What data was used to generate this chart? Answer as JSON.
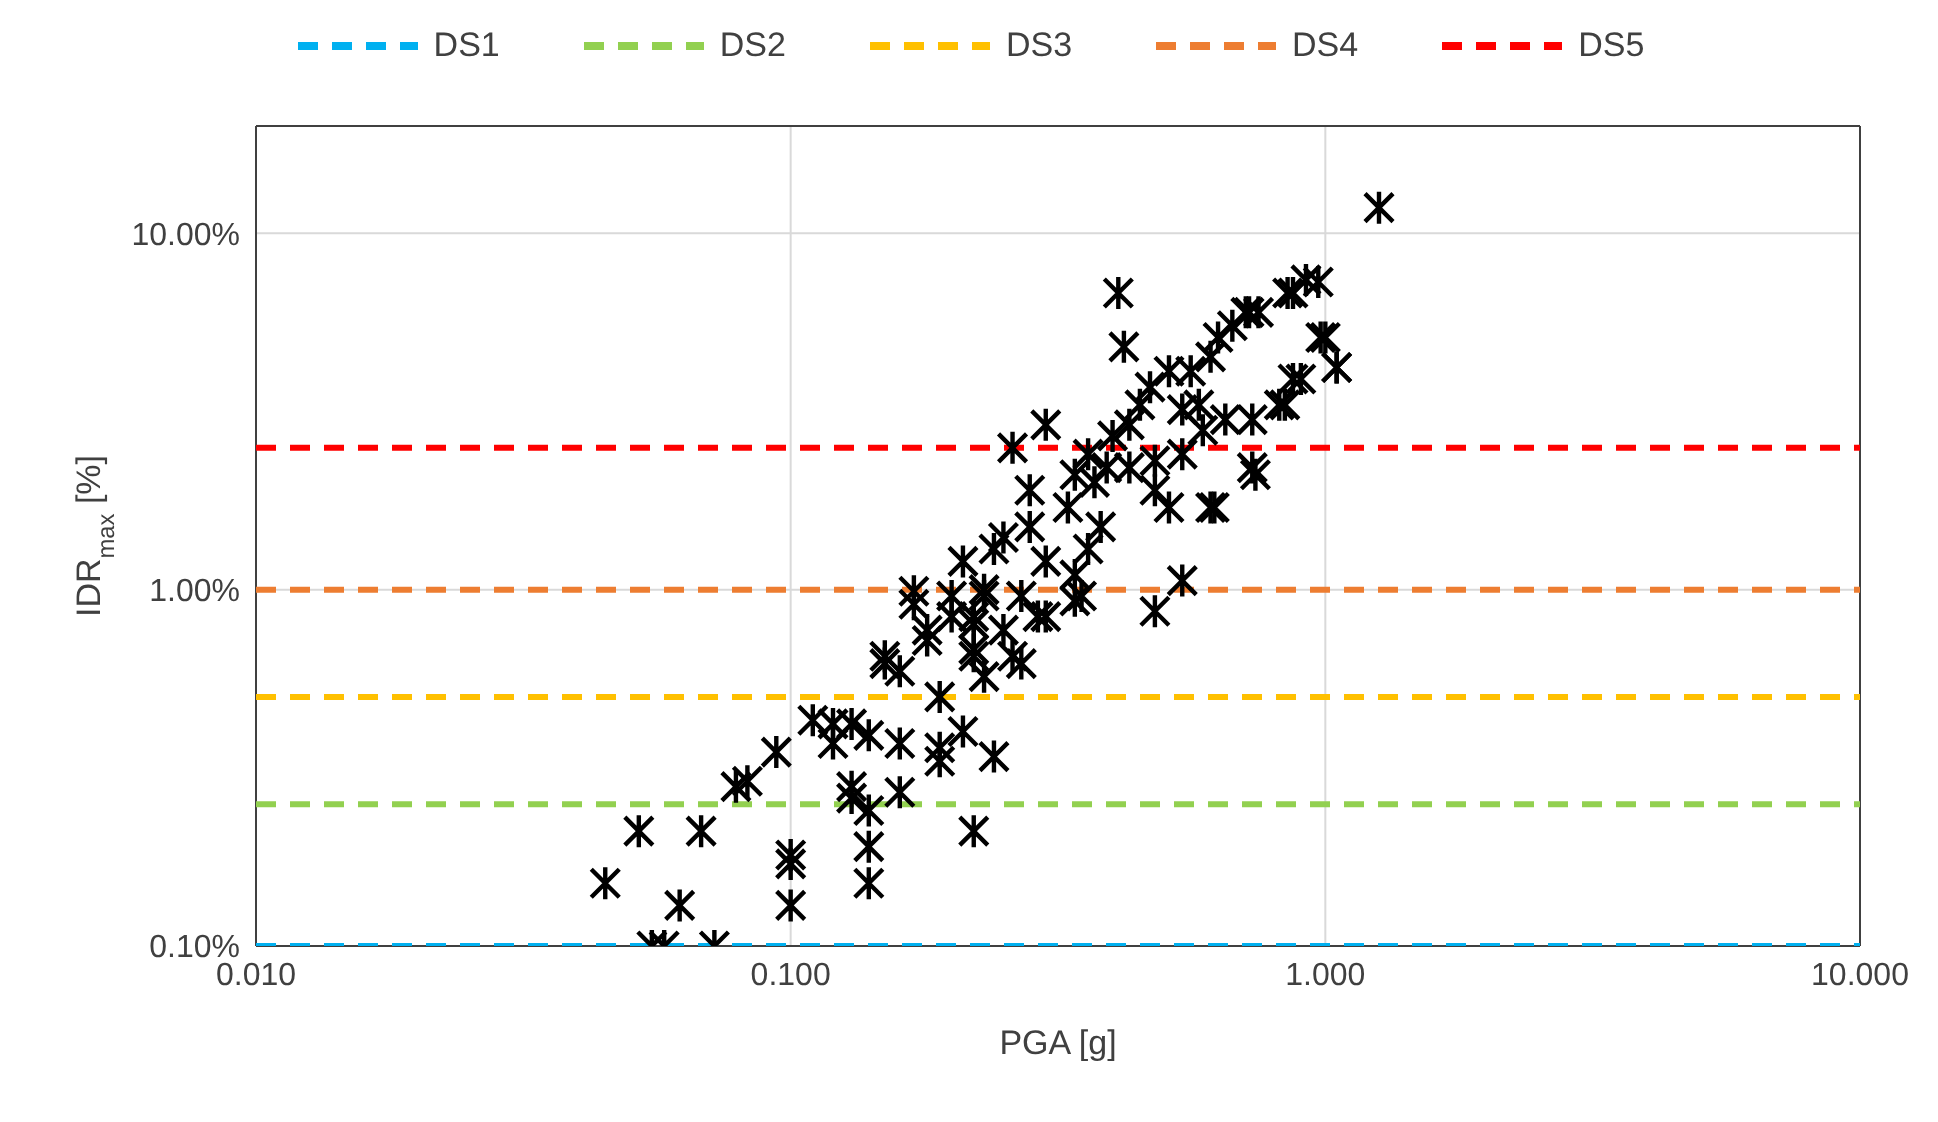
{
  "chart_data": {
    "type": "scatter",
    "xlabel": "PGA [g]",
    "ylabel": "IDR$_{max}$ [%]",
    "log": "xy",
    "grid": true,
    "legend": "top",
    "marker": "cross",
    "xlim": [
      0.01,
      10
    ],
    "ylim": [
      0.1,
      20
    ],
    "xticks": [
      {
        "value": 0.01,
        "label": "0.010"
      },
      {
        "value": 0.1,
        "label": "0.100"
      },
      {
        "value": 1,
        "label": "1.000"
      },
      {
        "value": 10,
        "label": "10.000"
      }
    ],
    "yticks": [
      {
        "value": 0.1,
        "label": "0.10%"
      },
      {
        "value": 1,
        "label": "1.00%"
      },
      {
        "value": 10,
        "label": "10.00%"
      }
    ],
    "series": [
      {
        "type": "line",
        "name": "DS1",
        "color": "#00b0f0",
        "line_style": "dashed",
        "marker": "none",
        "x": [
          0.01,
          10
        ],
        "values": [
          0.1,
          0.1
        ]
      },
      {
        "type": "line",
        "name": "DS2",
        "color": "#92d050",
        "line_style": "dashed",
        "marker": "none",
        "x": [
          0.01,
          10
        ],
        "values": [
          0.25,
          0.25
        ]
      },
      {
        "type": "line",
        "name": "DS3",
        "color": "#ffc000",
        "line_style": "dashed",
        "marker": "none",
        "x": [
          0.01,
          10
        ],
        "values": [
          0.5,
          0.5
        ]
      },
      {
        "type": "line",
        "name": "DS4",
        "color": "#ed7d31",
        "line_style": "dashed",
        "marker": "none",
        "x": [
          0.01,
          10
        ],
        "values": [
          1,
          1
        ]
      },
      {
        "type": "line",
        "name": "DS5",
        "color": "#ff0000",
        "line_style": "dashed",
        "marker": "none",
        "x": [
          0.01,
          10
        ],
        "values": [
          2.5,
          2.5
        ]
      },
      {
        "color": "#000000",
        "x": [
          0.052,
          0.068,
          0.045,
          0.062,
          0.055,
          0.058,
          0.072,
          0.1,
          0.1,
          0.1,
          0.079,
          0.083,
          0.094,
          0.11,
          0.12,
          0.13,
          0.12,
          0.13,
          0.13,
          0.14,
          0.14,
          0.14,
          0.14,
          0.16,
          0.16,
          0.19,
          0.19,
          0.21,
          0.24,
          0.22,
          0.19,
          0.15,
          0.16,
          0.17,
          0.18,
          0.18,
          0.2,
          0.22,
          0.22,
          0.23,
          0.25,
          0.27,
          0.29,
          0.34,
          0.23,
          0.41,
          0.42,
          0.92,
          0.87,
          0.72,
          0.67,
          0.98,
          1.05,
          0.87,
          0.82,
          0.51,
          0.47,
          0.45,
          0.61,
          0.58,
          0.54,
          0.65,
          0.73,
          0.43,
          0.4,
          0.3,
          0.26,
          0.36,
          0.39,
          0.43,
          0.48,
          0.54,
          0.73,
          0.28,
          0.34,
          0.37,
          0.33,
          0.48,
          0.51,
          0.61,
          0.25,
          0.28,
          0.38,
          0.24,
          0.3,
          0.36,
          0.21,
          0.23,
          0.34,
          0.17,
          0.2,
          0.27,
          0.35,
          0.54,
          0.48,
          0.22,
          0.3,
          0.15,
          0.22,
          0.26,
          1.26,
          0.97,
          0.85,
          0.71,
          0.75,
          0.63,
          1.0,
          1.05,
          0.9,
          0.84,
          0.56,
          0.59,
          0.74,
          0.62
        ],
        "values": [
          0.21,
          0.21,
          0.15,
          0.13,
          0.1,
          0.1,
          0.1,
          0.18,
          0.17,
          0.13,
          0.28,
          0.29,
          0.35,
          0.43,
          0.42,
          0.42,
          0.37,
          0.28,
          0.26,
          0.24,
          0.19,
          0.15,
          0.39,
          0.37,
          0.27,
          0.36,
          0.33,
          0.4,
          0.34,
          0.21,
          0.5,
          0.62,
          0.59,
          0.91,
          0.77,
          0.72,
          0.84,
          0.84,
          0.68,
          0.57,
          0.77,
          0.62,
          0.84,
          0.93,
          0.96,
          6.8,
          4.8,
          7.4,
          6.8,
          6.0,
          5.5,
          5.1,
          4.2,
          3.9,
          3.3,
          4.1,
          3.7,
          3.3,
          4.5,
          3.3,
          3.2,
          3.0,
          3.0,
          2.9,
          2.7,
          2.9,
          2.5,
          2.4,
          2.2,
          2.2,
          2.3,
          2.4,
          2.2,
          1.9,
          2.1,
          2.0,
          1.7,
          1.9,
          1.7,
          1.7,
          1.4,
          1.5,
          1.5,
          1.3,
          1.2,
          1.3,
          1.2,
          1.0,
          1.1,
          0.99,
          0.96,
          0.96,
          0.96,
          1.06,
          0.87,
          0.8,
          0.84,
          0.65,
          0.65,
          0.65,
          11.8,
          7.3,
          6.8,
          6.0,
          6.0,
          5.1,
          5.1,
          4.2,
          3.9,
          3.3,
          4.1,
          2.8,
          2.1,
          1.7
        ]
      }
    ]
  }
}
